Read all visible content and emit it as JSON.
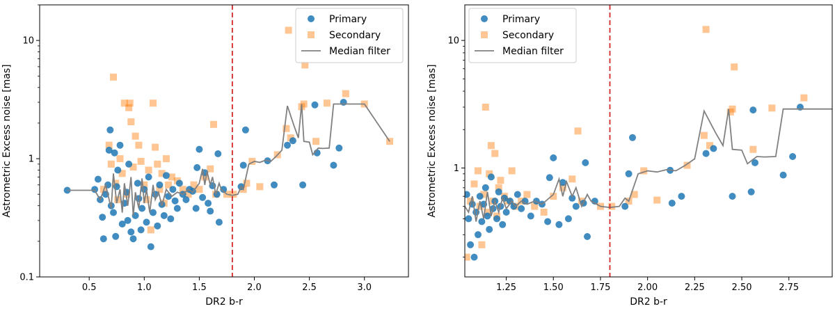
{
  "colors": {
    "primary": "#1f77b4",
    "secondary": "#ff7f0e",
    "median": "#808080",
    "cutoff": "#d62728"
  },
  "chart_data": [
    {
      "type": "scatter",
      "xlabel": "DR2 b-r",
      "ylabel": "Astrometric Excess noise [mas]",
      "xlim": [
        0.05,
        3.4
      ],
      "ylim": [
        0.1,
        20
      ],
      "yscale": "log",
      "xticks": [
        0.5,
        1.0,
        1.5,
        2.0,
        2.5,
        3.0
      ],
      "xtick_labels": [
        "0.5",
        "1.0",
        "1.5",
        "2.0",
        "2.5",
        "3.0"
      ],
      "yticks": [
        0.1,
        1,
        10
      ],
      "ytick_labels": [
        "0.1",
        "1",
        "10"
      ],
      "cutoff_x": 1.8,
      "legend": {
        "position": "top-right",
        "entries": [
          "Primary",
          "Secondary",
          "Median filter"
        ]
      },
      "primary": [
        [
          0.3,
          0.54
        ],
        [
          0.55,
          0.55
        ],
        [
          0.58,
          0.67
        ],
        [
          0.6,
          0.45
        ],
        [
          0.62,
          0.32
        ],
        [
          0.63,
          0.21
        ],
        [
          0.65,
          0.5
        ],
        [
          0.67,
          0.6
        ],
        [
          0.68,
          1.18
        ],
        [
          0.69,
          1.75
        ],
        [
          0.7,
          0.4
        ],
        [
          0.72,
          0.35
        ],
        [
          0.73,
          1.12
        ],
        [
          0.74,
          0.22
        ],
        [
          0.75,
          0.58
        ],
        [
          0.76,
          0.8
        ],
        [
          0.78,
          1.3
        ],
        [
          0.8,
          0.28
        ],
        [
          0.82,
          0.42
        ],
        [
          0.84,
          0.52
        ],
        [
          0.85,
          0.3
        ],
        [
          0.86,
          0.9
        ],
        [
          0.88,
          0.24
        ],
        [
          0.9,
          0.21
        ],
        [
          0.92,
          0.33
        ],
        [
          0.94,
          0.62
        ],
        [
          0.95,
          0.46
        ],
        [
          0.97,
          0.25
        ],
        [
          0.98,
          0.38
        ],
        [
          1.0,
          0.55
        ],
        [
          1.02,
          0.29
        ],
        [
          1.04,
          0.7
        ],
        [
          1.06,
          0.18
        ],
        [
          1.08,
          0.35
        ],
        [
          1.1,
          0.5
        ],
        [
          1.12,
          0.27
        ],
        [
          1.14,
          0.6
        ],
        [
          1.16,
          0.41
        ],
        [
          1.18,
          0.33
        ],
        [
          1.2,
          0.72
        ],
        [
          1.22,
          0.48
        ],
        [
          1.24,
          0.31
        ],
        [
          1.26,
          0.55
        ],
        [
          1.28,
          0.44
        ],
        [
          1.3,
          0.38
        ],
        [
          1.32,
          0.62
        ],
        [
          1.35,
          0.5
        ],
        [
          1.38,
          0.45
        ],
        [
          1.41,
          0.55
        ],
        [
          1.44,
          0.53
        ],
        [
          1.47,
          0.38
        ],
        [
          1.48,
          0.84
        ],
        [
          1.5,
          1.2
        ],
        [
          1.53,
          0.47
        ],
        [
          1.55,
          0.76
        ],
        [
          1.58,
          0.42
        ],
        [
          1.6,
          0.36
        ],
        [
          1.62,
          0.59
        ],
        [
          1.66,
          0.5
        ],
        [
          1.67,
          1.1
        ],
        [
          1.68,
          0.29
        ],
        [
          1.72,
          0.55
        ],
        [
          1.88,
          0.58
        ],
        [
          1.9,
          0.88
        ],
        [
          1.92,
          1.75
        ],
        [
          2.12,
          0.96
        ],
        [
          2.18,
          0.6
        ],
        [
          2.3,
          1.3
        ],
        [
          2.35,
          1.42
        ],
        [
          2.44,
          0.6
        ],
        [
          2.55,
          2.85
        ],
        [
          2.57,
          1.12
        ],
        [
          2.72,
          0.88
        ],
        [
          2.77,
          1.23
        ],
        [
          2.81,
          3.0
        ]
      ],
      "secondary": [
        [
          0.63,
          0.55
        ],
        [
          0.68,
          1.3
        ],
        [
          0.7,
          0.9
        ],
        [
          0.72,
          4.9
        ],
        [
          0.74,
          0.62
        ],
        [
          0.76,
          0.45
        ],
        [
          0.78,
          1.0
        ],
        [
          0.8,
          0.75
        ],
        [
          0.82,
          2.95
        ],
        [
          0.84,
          0.5
        ],
        [
          0.86,
          2.7
        ],
        [
          0.87,
          2.95
        ],
        [
          0.88,
          2.05
        ],
        [
          0.9,
          0.85
        ],
        [
          0.92,
          1.55
        ],
        [
          0.95,
          1.3
        ],
        [
          0.97,
          0.95
        ],
        [
          1.0,
          0.6
        ],
        [
          1.02,
          0.45
        ],
        [
          1.04,
          0.8
        ],
        [
          1.06,
          0.25
        ],
        [
          1.08,
          2.95
        ],
        [
          1.1,
          1.25
        ],
        [
          1.12,
          0.9
        ],
        [
          1.14,
          0.55
        ],
        [
          1.16,
          0.75
        ],
        [
          1.18,
          0.42
        ],
        [
          1.2,
          1.0
        ],
        [
          1.22,
          0.6
        ],
        [
          1.25,
          0.7
        ],
        [
          1.3,
          0.65
        ],
        [
          1.35,
          0.55
        ],
        [
          1.4,
          0.5
        ],
        [
          1.45,
          0.6
        ],
        [
          1.5,
          0.55
        ],
        [
          1.55,
          0.7
        ],
        [
          1.6,
          0.82
        ],
        [
          1.63,
          1.95
        ],
        [
          1.65,
          0.5
        ],
        [
          1.75,
          0.5
        ],
        [
          1.81,
          0.5
        ],
        [
          1.9,
          0.55
        ],
        [
          1.93,
          0.62
        ],
        [
          1.98,
          0.95
        ],
        [
          2.05,
          0.58
        ],
        [
          2.21,
          1.08
        ],
        [
          2.29,
          1.8
        ],
        [
          2.31,
          12.2
        ],
        [
          2.33,
          1.5
        ],
        [
          2.43,
          2.75
        ],
        [
          2.45,
          2.9
        ],
        [
          2.46,
          6.2
        ],
        [
          2.56,
          1.4
        ],
        [
          2.66,
          2.95
        ],
        [
          2.83,
          3.55
        ],
        [
          3.0,
          2.9
        ],
        [
          3.23,
          1.4
        ]
      ],
      "median": [
        [
          0.3,
          0.54
        ],
        [
          0.55,
          0.54
        ],
        [
          0.6,
          0.45
        ],
        [
          0.65,
          0.6
        ],
        [
          0.7,
          0.38
        ],
        [
          0.72,
          0.75
        ],
        [
          0.75,
          0.42
        ],
        [
          0.78,
          0.55
        ],
        [
          0.8,
          0.35
        ],
        [
          0.82,
          0.62
        ],
        [
          0.85,
          0.4
        ],
        [
          0.88,
          0.7
        ],
        [
          0.9,
          0.33
        ],
        [
          0.92,
          0.52
        ],
        [
          0.95,
          0.38
        ],
        [
          0.98,
          0.68
        ],
        [
          1.0,
          0.42
        ],
        [
          1.02,
          0.55
        ],
        [
          1.05,
          0.35
        ],
        [
          1.08,
          0.6
        ],
        [
          1.1,
          0.45
        ],
        [
          1.13,
          0.52
        ],
        [
          1.16,
          0.4
        ],
        [
          1.2,
          0.55
        ],
        [
          1.25,
          0.48
        ],
        [
          1.3,
          0.52
        ],
        [
          1.35,
          0.5
        ],
        [
          1.4,
          0.55
        ],
        [
          1.44,
          0.52
        ],
        [
          1.5,
          0.62
        ],
        [
          1.53,
          0.82
        ],
        [
          1.55,
          0.6
        ],
        [
          1.57,
          0.78
        ],
        [
          1.6,
          0.6
        ],
        [
          1.62,
          0.7
        ],
        [
          1.65,
          0.5
        ],
        [
          1.68,
          0.62
        ],
        [
          1.7,
          0.55
        ],
        [
          1.75,
          0.5
        ],
        [
          1.8,
          0.49
        ],
        [
          1.85,
          0.5
        ],
        [
          1.88,
          0.58
        ],
        [
          1.9,
          0.55
        ],
        [
          1.95,
          0.9
        ],
        [
          2.0,
          0.95
        ],
        [
          2.05,
          0.93
        ],
        [
          2.1,
          0.97
        ],
        [
          2.15,
          0.95
        ],
        [
          2.2,
          1.05
        ],
        [
          2.25,
          1.18
        ],
        [
          2.3,
          2.8
        ],
        [
          2.36,
          1.9
        ],
        [
          2.4,
          1.5
        ],
        [
          2.43,
          2.9
        ],
        [
          2.45,
          1.4
        ],
        [
          2.5,
          1.38
        ],
        [
          2.53,
          1.08
        ],
        [
          2.58,
          1.23
        ],
        [
          2.62,
          1.22
        ],
        [
          2.68,
          1.23
        ],
        [
          2.72,
          2.9
        ],
        [
          3.0,
          2.9
        ],
        [
          3.23,
          1.4
        ]
      ]
    },
    {
      "type": "scatter",
      "xlabel": "DR2 b-r",
      "ylabel": "Astrometric Excess noise [mas]",
      "xlim": [
        1.03,
        2.98
      ],
      "ylim": [
        0.14,
        19
      ],
      "yscale": "log",
      "xticks": [
        1.25,
        1.5,
        1.75,
        2.0,
        2.25,
        2.5,
        2.75
      ],
      "xtick_labels": [
        "1.25",
        "1.50",
        "1.75",
        "2.00",
        "2.25",
        "2.50",
        "2.75"
      ],
      "yticks": [
        1,
        10
      ],
      "ytick_labels": [
        "1",
        "10"
      ],
      "cutoff_x": 1.8,
      "legend": {
        "position": "top-left",
        "entries": [
          "Primary",
          "Secondary",
          "Median filter"
        ]
      },
      "primary": [
        [
          1.04,
          0.62
        ],
        [
          1.05,
          0.4
        ],
        [
          1.06,
          0.25
        ],
        [
          1.07,
          0.52
        ],
        [
          1.08,
          0.2
        ],
        [
          1.09,
          0.45
        ],
        [
          1.1,
          0.3
        ],
        [
          1.11,
          0.6
        ],
        [
          1.12,
          0.38
        ],
        [
          1.13,
          0.52
        ],
        [
          1.14,
          0.7
        ],
        [
          1.15,
          0.42
        ],
        [
          1.16,
          0.33
        ],
        [
          1.17,
          0.85
        ],
        [
          1.18,
          0.48
        ],
        [
          1.19,
          0.55
        ],
        [
          1.2,
          0.4
        ],
        [
          1.21,
          0.65
        ],
        [
          1.22,
          0.5
        ],
        [
          1.23,
          0.36
        ],
        [
          1.24,
          0.58
        ],
        [
          1.25,
          0.45
        ],
        [
          1.27,
          0.55
        ],
        [
          1.29,
          0.5
        ],
        [
          1.31,
          0.62
        ],
        [
          1.33,
          0.48
        ],
        [
          1.35,
          0.55
        ],
        [
          1.38,
          0.42
        ],
        [
          1.41,
          0.55
        ],
        [
          1.44,
          0.52
        ],
        [
          1.47,
          0.38
        ],
        [
          1.48,
          0.84
        ],
        [
          1.5,
          1.2
        ],
        [
          1.53,
          0.36
        ],
        [
          1.55,
          0.77
        ],
        [
          1.58,
          0.4
        ],
        [
          1.6,
          0.58
        ],
        [
          1.62,
          0.5
        ],
        [
          1.66,
          0.53
        ],
        [
          1.67,
          1.1
        ],
        [
          1.68,
          0.29
        ],
        [
          1.72,
          0.55
        ],
        [
          1.88,
          0.5
        ],
        [
          1.9,
          0.9
        ],
        [
          1.92,
          1.73
        ],
        [
          2.12,
          0.96
        ],
        [
          2.13,
          0.53
        ],
        [
          2.18,
          0.6
        ],
        [
          2.31,
          1.3
        ],
        [
          2.35,
          1.42
        ],
        [
          2.45,
          0.6
        ],
        [
          2.55,
          0.65
        ],
        [
          2.56,
          2.85
        ],
        [
          2.57,
          1.1
        ],
        [
          2.72,
          0.88
        ],
        [
          2.77,
          1.23
        ],
        [
          2.81,
          3.0
        ]
      ],
      "secondary": [
        [
          1.04,
          0.2
        ],
        [
          1.06,
          0.55
        ],
        [
          1.08,
          0.75
        ],
        [
          1.1,
          0.95
        ],
        [
          1.11,
          0.5
        ],
        [
          1.12,
          0.25
        ],
        [
          1.13,
          0.62
        ],
        [
          1.14,
          3.0
        ],
        [
          1.15,
          0.45
        ],
        [
          1.16,
          0.9
        ],
        [
          1.17,
          1.5
        ],
        [
          1.18,
          0.55
        ],
        [
          1.19,
          1.3
        ],
        [
          1.2,
          0.42
        ],
        [
          1.21,
          0.7
        ],
        [
          1.22,
          0.8
        ],
        [
          1.24,
          0.6
        ],
        [
          1.26,
          0.55
        ],
        [
          1.28,
          0.95
        ],
        [
          1.3,
          0.5
        ],
        [
          1.33,
          0.55
        ],
        [
          1.36,
          0.62
        ],
        [
          1.4,
          0.5
        ],
        [
          1.45,
          0.45
        ],
        [
          1.5,
          0.6
        ],
        [
          1.55,
          0.7
        ],
        [
          1.6,
          0.82
        ],
        [
          1.63,
          1.95
        ],
        [
          1.65,
          0.55
        ],
        [
          1.75,
          0.5
        ],
        [
          1.81,
          0.5
        ],
        [
          1.9,
          0.55
        ],
        [
          1.93,
          0.62
        ],
        [
          1.98,
          0.95
        ],
        [
          2.05,
          0.56
        ],
        [
          2.21,
          1.05
        ],
        [
          2.3,
          1.8
        ],
        [
          2.31,
          12.2
        ],
        [
          2.33,
          1.5
        ],
        [
          2.44,
          2.75
        ],
        [
          2.45,
          2.9
        ],
        [
          2.46,
          6.2
        ],
        [
          2.56,
          1.4
        ],
        [
          2.66,
          2.95
        ],
        [
          2.83,
          3.55
        ]
      ],
      "median": [
        [
          1.03,
          0.5
        ],
        [
          1.05,
          0.45
        ],
        [
          1.07,
          0.6
        ],
        [
          1.09,
          0.38
        ],
        [
          1.11,
          0.55
        ],
        [
          1.13,
          0.4
        ],
        [
          1.15,
          0.65
        ],
        [
          1.17,
          0.42
        ],
        [
          1.19,
          0.55
        ],
        [
          1.21,
          0.45
        ],
        [
          1.23,
          0.58
        ],
        [
          1.25,
          0.48
        ],
        [
          1.28,
          0.55
        ],
        [
          1.3,
          0.5
        ],
        [
          1.33,
          0.55
        ],
        [
          1.36,
          0.52
        ],
        [
          1.4,
          0.55
        ],
        [
          1.44,
          0.52
        ],
        [
          1.5,
          0.62
        ],
        [
          1.53,
          0.82
        ],
        [
          1.55,
          0.6
        ],
        [
          1.57,
          0.78
        ],
        [
          1.6,
          0.6
        ],
        [
          1.62,
          0.7
        ],
        [
          1.65,
          0.5
        ],
        [
          1.68,
          0.62
        ],
        [
          1.7,
          0.55
        ],
        [
          1.75,
          0.5
        ],
        [
          1.8,
          0.49
        ],
        [
          1.85,
          0.5
        ],
        [
          1.88,
          0.58
        ],
        [
          1.9,
          0.55
        ],
        [
          1.95,
          0.9
        ],
        [
          2.0,
          0.95
        ],
        [
          2.05,
          0.93
        ],
        [
          2.1,
          0.97
        ],
        [
          2.15,
          0.95
        ],
        [
          2.2,
          1.05
        ],
        [
          2.25,
          1.18
        ],
        [
          2.3,
          2.8
        ],
        [
          2.36,
          1.9
        ],
        [
          2.4,
          1.5
        ],
        [
          2.43,
          2.9
        ],
        [
          2.45,
          1.4
        ],
        [
          2.5,
          1.38
        ],
        [
          2.53,
          1.08
        ],
        [
          2.58,
          1.23
        ],
        [
          2.62,
          1.22
        ],
        [
          2.68,
          1.23
        ],
        [
          2.72,
          2.9
        ],
        [
          2.98,
          2.9
        ]
      ]
    }
  ]
}
